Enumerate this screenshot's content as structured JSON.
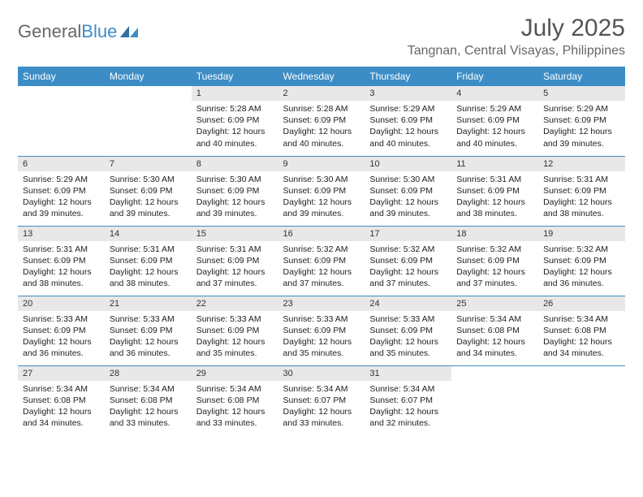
{
  "logo": {
    "general": "General",
    "blue": "Blue"
  },
  "title": "July 2025",
  "location": "Tangnan, Central Visayas, Philippines",
  "days_of_week": [
    "Sunday",
    "Monday",
    "Tuesday",
    "Wednesday",
    "Thursday",
    "Friday",
    "Saturday"
  ],
  "colors": {
    "header_bg": "#3c8dc5",
    "header_text": "#ffffff",
    "daynum_bg": "#e8e8e8",
    "text": "#222222",
    "border": "#3c8dc5"
  },
  "typography": {
    "title_fontsize": 30,
    "location_fontsize": 16,
    "dayofweek_fontsize": 12,
    "cell_fontsize": 10.5
  },
  "layout": {
    "columns": 7,
    "rows": 5,
    "start_day_index": 2
  },
  "cells": [
    {
      "n": "1",
      "sr": "Sunrise: 5:28 AM",
      "ss": "Sunset: 6:09 PM",
      "d1": "Daylight: 12 hours",
      "d2": "and 40 minutes."
    },
    {
      "n": "2",
      "sr": "Sunrise: 5:28 AM",
      "ss": "Sunset: 6:09 PM",
      "d1": "Daylight: 12 hours",
      "d2": "and 40 minutes."
    },
    {
      "n": "3",
      "sr": "Sunrise: 5:29 AM",
      "ss": "Sunset: 6:09 PM",
      "d1": "Daylight: 12 hours",
      "d2": "and 40 minutes."
    },
    {
      "n": "4",
      "sr": "Sunrise: 5:29 AM",
      "ss": "Sunset: 6:09 PM",
      "d1": "Daylight: 12 hours",
      "d2": "and 40 minutes."
    },
    {
      "n": "5",
      "sr": "Sunrise: 5:29 AM",
      "ss": "Sunset: 6:09 PM",
      "d1": "Daylight: 12 hours",
      "d2": "and 39 minutes."
    },
    {
      "n": "6",
      "sr": "Sunrise: 5:29 AM",
      "ss": "Sunset: 6:09 PM",
      "d1": "Daylight: 12 hours",
      "d2": "and 39 minutes."
    },
    {
      "n": "7",
      "sr": "Sunrise: 5:30 AM",
      "ss": "Sunset: 6:09 PM",
      "d1": "Daylight: 12 hours",
      "d2": "and 39 minutes."
    },
    {
      "n": "8",
      "sr": "Sunrise: 5:30 AM",
      "ss": "Sunset: 6:09 PM",
      "d1": "Daylight: 12 hours",
      "d2": "and 39 minutes."
    },
    {
      "n": "9",
      "sr": "Sunrise: 5:30 AM",
      "ss": "Sunset: 6:09 PM",
      "d1": "Daylight: 12 hours",
      "d2": "and 39 minutes."
    },
    {
      "n": "10",
      "sr": "Sunrise: 5:30 AM",
      "ss": "Sunset: 6:09 PM",
      "d1": "Daylight: 12 hours",
      "d2": "and 39 minutes."
    },
    {
      "n": "11",
      "sr": "Sunrise: 5:31 AM",
      "ss": "Sunset: 6:09 PM",
      "d1": "Daylight: 12 hours",
      "d2": "and 38 minutes."
    },
    {
      "n": "12",
      "sr": "Sunrise: 5:31 AM",
      "ss": "Sunset: 6:09 PM",
      "d1": "Daylight: 12 hours",
      "d2": "and 38 minutes."
    },
    {
      "n": "13",
      "sr": "Sunrise: 5:31 AM",
      "ss": "Sunset: 6:09 PM",
      "d1": "Daylight: 12 hours",
      "d2": "and 38 minutes."
    },
    {
      "n": "14",
      "sr": "Sunrise: 5:31 AM",
      "ss": "Sunset: 6:09 PM",
      "d1": "Daylight: 12 hours",
      "d2": "and 38 minutes."
    },
    {
      "n": "15",
      "sr": "Sunrise: 5:31 AM",
      "ss": "Sunset: 6:09 PM",
      "d1": "Daylight: 12 hours",
      "d2": "and 37 minutes."
    },
    {
      "n": "16",
      "sr": "Sunrise: 5:32 AM",
      "ss": "Sunset: 6:09 PM",
      "d1": "Daylight: 12 hours",
      "d2": "and 37 minutes."
    },
    {
      "n": "17",
      "sr": "Sunrise: 5:32 AM",
      "ss": "Sunset: 6:09 PM",
      "d1": "Daylight: 12 hours",
      "d2": "and 37 minutes."
    },
    {
      "n": "18",
      "sr": "Sunrise: 5:32 AM",
      "ss": "Sunset: 6:09 PM",
      "d1": "Daylight: 12 hours",
      "d2": "and 37 minutes."
    },
    {
      "n": "19",
      "sr": "Sunrise: 5:32 AM",
      "ss": "Sunset: 6:09 PM",
      "d1": "Daylight: 12 hours",
      "d2": "and 36 minutes."
    },
    {
      "n": "20",
      "sr": "Sunrise: 5:33 AM",
      "ss": "Sunset: 6:09 PM",
      "d1": "Daylight: 12 hours",
      "d2": "and 36 minutes."
    },
    {
      "n": "21",
      "sr": "Sunrise: 5:33 AM",
      "ss": "Sunset: 6:09 PM",
      "d1": "Daylight: 12 hours",
      "d2": "and 36 minutes."
    },
    {
      "n": "22",
      "sr": "Sunrise: 5:33 AM",
      "ss": "Sunset: 6:09 PM",
      "d1": "Daylight: 12 hours",
      "d2": "and 35 minutes."
    },
    {
      "n": "23",
      "sr": "Sunrise: 5:33 AM",
      "ss": "Sunset: 6:09 PM",
      "d1": "Daylight: 12 hours",
      "d2": "and 35 minutes."
    },
    {
      "n": "24",
      "sr": "Sunrise: 5:33 AM",
      "ss": "Sunset: 6:09 PM",
      "d1": "Daylight: 12 hours",
      "d2": "and 35 minutes."
    },
    {
      "n": "25",
      "sr": "Sunrise: 5:34 AM",
      "ss": "Sunset: 6:08 PM",
      "d1": "Daylight: 12 hours",
      "d2": "and 34 minutes."
    },
    {
      "n": "26",
      "sr": "Sunrise: 5:34 AM",
      "ss": "Sunset: 6:08 PM",
      "d1": "Daylight: 12 hours",
      "d2": "and 34 minutes."
    },
    {
      "n": "27",
      "sr": "Sunrise: 5:34 AM",
      "ss": "Sunset: 6:08 PM",
      "d1": "Daylight: 12 hours",
      "d2": "and 34 minutes."
    },
    {
      "n": "28",
      "sr": "Sunrise: 5:34 AM",
      "ss": "Sunset: 6:08 PM",
      "d1": "Daylight: 12 hours",
      "d2": "and 33 minutes."
    },
    {
      "n": "29",
      "sr": "Sunrise: 5:34 AM",
      "ss": "Sunset: 6:08 PM",
      "d1": "Daylight: 12 hours",
      "d2": "and 33 minutes."
    },
    {
      "n": "30",
      "sr": "Sunrise: 5:34 AM",
      "ss": "Sunset: 6:07 PM",
      "d1": "Daylight: 12 hours",
      "d2": "and 33 minutes."
    },
    {
      "n": "31",
      "sr": "Sunrise: 5:34 AM",
      "ss": "Sunset: 6:07 PM",
      "d1": "Daylight: 12 hours",
      "d2": "and 32 minutes."
    }
  ]
}
